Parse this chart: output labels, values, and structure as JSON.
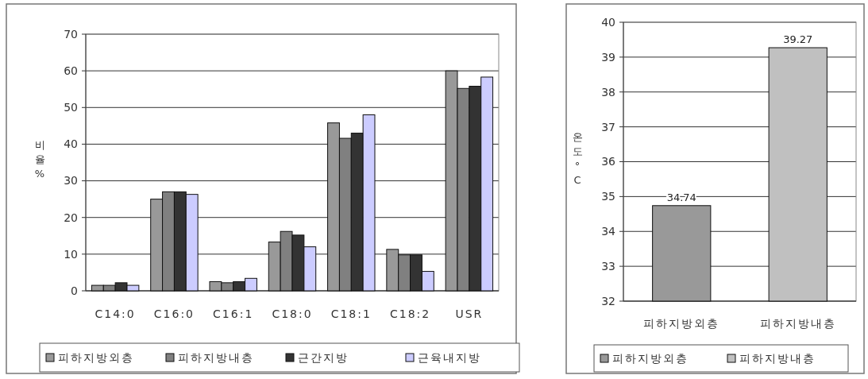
{
  "chart_data": [
    {
      "type": "bar",
      "categories": [
        "C14:0",
        "C16:0",
        "C16:1",
        "C18:0",
        "C18:1",
        "C18:2",
        "USR"
      ],
      "ylabel": "비율%",
      "series": [
        {
          "name": "피하지방외층",
          "color": "#999999",
          "values": [
            1.5,
            25,
            2.5,
            13.3,
            45.8,
            11.3,
            60
          ]
        },
        {
          "name": "피하지방내층",
          "color": "#808080",
          "values": [
            1.5,
            27,
            2.2,
            16.2,
            41.6,
            9.8,
            55.2
          ]
        },
        {
          "name": "근간지방",
          "color": "#333333",
          "values": [
            2.2,
            27,
            2.5,
            15.2,
            43,
            9.8,
            55.8
          ]
        },
        {
          "name": "근육내지방",
          "color": "#ccccff",
          "values": [
            1.5,
            26.3,
            3.4,
            12,
            48,
            5.3,
            58.3
          ]
        }
      ],
      "ylim": [
        0,
        70
      ],
      "yticks": [
        0,
        10,
        20,
        30,
        40,
        50,
        60,
        70
      ],
      "grid": "y",
      "legend": "bottom"
    },
    {
      "type": "bar",
      "categories": [
        "피하지방외층",
        "피하지방내층"
      ],
      "ylabel": "온도°C",
      "series": [
        {
          "name": "피하지방외층",
          "color": "#999999",
          "values": [
            34.74,
            null
          ]
        },
        {
          "name": "피하지방내층",
          "color": "#c0c0c0",
          "values": [
            null,
            39.27
          ]
        }
      ],
      "ylim": [
        32,
        40
      ],
      "yticks": [
        32,
        33,
        34,
        35,
        36,
        37,
        38,
        39,
        40
      ],
      "grid": "y",
      "legend": "bottom",
      "data_labels": true
    }
  ]
}
